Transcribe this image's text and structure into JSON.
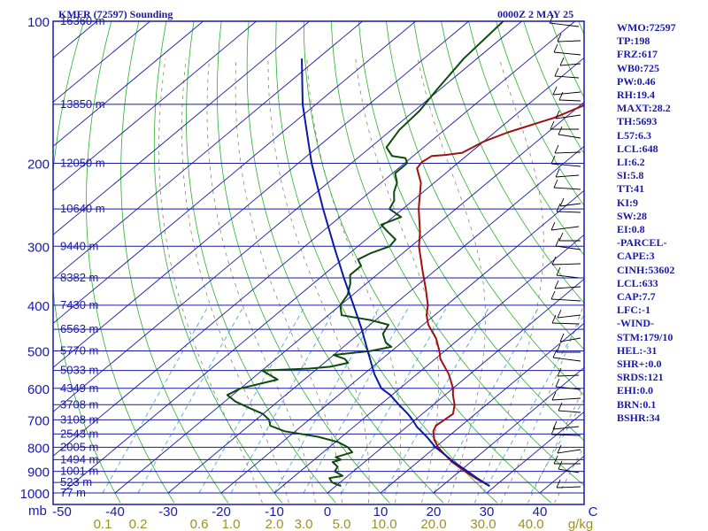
{
  "header": {
    "station": "KMFR (72597) Sounding",
    "time": "0000Z  2 MAY 25"
  },
  "stats": [
    "WMO:72597",
    "TP:198",
    "FRZ:617",
    "WB0:725",
    "PW:0.46",
    "RH:19.4",
    "MAXT:28.2",
    "TH:5693",
    "L57:6.3",
    "LCL:648",
    "LI:6.2",
    "SI:5.8",
    "TT:41",
    "KI:9",
    "SW:28",
    "EI:0.8",
    "-PARCEL-",
    "CAPE:3",
    "CINH:53602",
    "LCL:633",
    "CAP:7.7",
    "LFC:-1",
    "-WIND-",
    "STM:179/10",
    "HEL:-31",
    "SHR+:0.0",
    "SRDS:121",
    "EHI:0.0",
    "BRN:0.1",
    "BSHR:34"
  ],
  "colors": {
    "frame": "#1a1aa6",
    "dry_adiabat": "#2ab02a",
    "isotherm": "#1a1aa6",
    "mixing_ratio": "#4aa8d8",
    "moist_adiabat": "#8a8470",
    "temperature": "#a01010",
    "dewpoint": "#0f4a0f",
    "parcel": "#0b1aa6",
    "wind": "#000000",
    "mix_label": "#a09020"
  },
  "chart_data": {
    "type": "line",
    "title": "KMFR (72597) Sounding",
    "xlabel": "",
    "ylabel": "mb",
    "x_unit_label": "C",
    "mix_unit_label": "g/kg",
    "xlim": [
      -50,
      50
    ],
    "ylim": [
      1000,
      100
    ],
    "pressure_ticks": [
      100,
      200,
      300,
      400,
      500,
      600,
      700,
      800,
      900,
      1000
    ],
    "temperature_ticks": [
      {
        "v": -50,
        "t": "-50"
      },
      {
        "v": -40,
        "t": "-40"
      },
      {
        "v": -30,
        "t": "-30"
      },
      {
        "v": -20,
        "t": "-20"
      },
      {
        "v": -10,
        "t": "-10"
      },
      {
        "v": 0,
        "t": "0"
      },
      {
        "v": 10,
        "t": "10"
      },
      {
        "v": 20,
        "t": "20"
      },
      {
        "v": 30,
        "t": "30"
      },
      {
        "v": 40,
        "t": "40"
      },
      {
        "v": 50,
        "t": "C"
      }
    ],
    "mixing_ratio_labels": [
      {
        "px": 116,
        "t": "0.1"
      },
      {
        "px": 156,
        "t": "0.2"
      },
      {
        "px": 225,
        "t": "0.6"
      },
      {
        "px": 261,
        "t": "1.0"
      },
      {
        "px": 310,
        "t": "2.0"
      },
      {
        "px": 343,
        "t": "3.0"
      },
      {
        "px": 386,
        "t": "5.0"
      },
      {
        "px": 434,
        "t": "10.0"
      },
      {
        "px": 490,
        "t": "20.0"
      },
      {
        "px": 546,
        "t": "30.0"
      },
      {
        "px": 600,
        "t": "40.0"
      },
      {
        "px": 656,
        "t": "g/kg"
      }
    ],
    "height_labels": [
      {
        "p": 100,
        "t": "16360 m"
      },
      {
        "p": 150,
        "t": "13850 m"
      },
      {
        "p": 200,
        "t": "12050 m"
      },
      {
        "p": 250,
        "t": "10640 m"
      },
      {
        "p": 300,
        "t": "9440 m"
      },
      {
        "p": 350,
        "t": "8382 m"
      },
      {
        "p": 400,
        "t": "7430 m"
      },
      {
        "p": 450,
        "t": "6563 m"
      },
      {
        "p": 500,
        "t": "5770 m"
      },
      {
        "p": 550,
        "t": "5033 m"
      },
      {
        "p": 600,
        "t": "4349 m"
      },
      {
        "p": 650,
        "t": "3708 m"
      },
      {
        "p": 700,
        "t": "3108 m"
      },
      {
        "p": 750,
        "t": "2543 m"
      },
      {
        "p": 800,
        "t": "2005 m"
      },
      {
        "p": 850,
        "t": "1494 m"
      },
      {
        "p": 900,
        "t": "1001 m"
      },
      {
        "p": 950,
        "t": "523 m"
      },
      {
        "p": 1000,
        "t": "77 m"
      }
    ],
    "series": [
      {
        "key": "temperature",
        "values": [
          [
            967,
            29.0
          ],
          [
            960,
            28.2
          ],
          [
            930,
            24.5
          ],
          [
            900,
            21.0
          ],
          [
            860,
            16.5
          ],
          [
            820,
            12.5
          ],
          [
            800,
            10.5
          ],
          [
            770,
            8.0
          ],
          [
            740,
            6.0
          ],
          [
            720,
            5.2
          ],
          [
            700,
            5.5
          ],
          [
            680,
            5.8
          ],
          [
            650,
            4.0
          ],
          [
            620,
            1.5
          ],
          [
            600,
            0.0
          ],
          [
            560,
            -4.0
          ],
          [
            520,
            -9.0
          ],
          [
            500,
            -11.0
          ],
          [
            470,
            -14.5
          ],
          [
            440,
            -19.0
          ],
          [
            420,
            -21.5
          ],
          [
            400,
            -23.5
          ],
          [
            370,
            -27.5
          ],
          [
            340,
            -32.0
          ],
          [
            300,
            -38.5
          ],
          [
            280,
            -41.5
          ],
          [
            250,
            -47.0
          ],
          [
            220,
            -52.5
          ],
          [
            205,
            -56.5
          ],
          [
            199,
            -57.0
          ],
          [
            193,
            -56.5
          ],
          [
            192,
            -54.0
          ],
          [
            190,
            -51.5
          ],
          [
            180,
            -50.0
          ],
          [
            172,
            -47.5
          ],
          [
            160,
            -42.0
          ],
          [
            145,
            -37.5
          ],
          [
            130,
            -31.0
          ],
          [
            115,
            -23.5
          ],
          [
            100,
            -16.5
          ]
        ]
      },
      {
        "key": "dewpoint",
        "values": [
          [
            967,
            1.0
          ],
          [
            950,
            -1.5
          ],
          [
            930,
            -3.0
          ],
          [
            920,
            -1.0
          ],
          [
            900,
            -3.5
          ],
          [
            880,
            -4.0
          ],
          [
            860,
            -6.0
          ],
          [
            850,
            -5.0
          ],
          [
            840,
            -6.5
          ],
          [
            820,
            -4.5
          ],
          [
            800,
            -6.5
          ],
          [
            780,
            -9.5
          ],
          [
            760,
            -14.5
          ],
          [
            740,
            -22.0
          ],
          [
            720,
            -26.0
          ],
          [
            700,
            -27.5
          ],
          [
            680,
            -30.0
          ],
          [
            660,
            -34.0
          ],
          [
            640,
            -38.0
          ],
          [
            620,
            -41.0
          ],
          [
            600,
            -40.0
          ],
          [
            590,
            -38.0
          ],
          [
            575,
            -35.0
          ],
          [
            560,
            -38.0
          ],
          [
            550,
            -40.0
          ],
          [
            545,
            -31.5
          ],
          [
            540,
            -28.0
          ],
          [
            530,
            -25.5
          ],
          [
            520,
            -27.0
          ],
          [
            510,
            -30.0
          ],
          [
            500,
            -24.0
          ],
          [
            490,
            -21.0
          ],
          [
            480,
            -23.0
          ],
          [
            460,
            -25.5
          ],
          [
            440,
            -26.5
          ],
          [
            430,
            -31.0
          ],
          [
            420,
            -37.5
          ],
          [
            400,
            -40.0
          ],
          [
            380,
            -41.0
          ],
          [
            360,
            -43.0
          ],
          [
            345,
            -45.0
          ],
          [
            330,
            -45.0
          ],
          [
            320,
            -47.0
          ],
          [
            310,
            -46.0
          ],
          [
            300,
            -44.0
          ],
          [
            290,
            -44.5
          ],
          [
            280,
            -47.5
          ],
          [
            270,
            -50.5
          ],
          [
            260,
            -48.5
          ],
          [
            250,
            -52.5
          ],
          [
            240,
            -53.5
          ],
          [
            230,
            -55.5
          ],
          [
            220,
            -57.0
          ],
          [
            210,
            -59.5
          ],
          [
            200,
            -59.5
          ],
          [
            195,
            -61.0
          ],
          [
            193,
            -64.0
          ],
          [
            185,
            -67.0
          ],
          [
            170,
            -68.5
          ],
          [
            155,
            -69.0
          ],
          [
            140,
            -70.5
          ],
          [
            120,
            -72.5
          ],
          [
            100,
            -73.5
          ]
        ]
      },
      {
        "key": "parcel",
        "values": [
          [
            967,
            29.0
          ],
          [
            930,
            24.8
          ],
          [
            900,
            21.5
          ],
          [
            860,
            16.8
          ],
          [
            830,
            13.5
          ],
          [
            800,
            10.0
          ],
          [
            760,
            6.0
          ],
          [
            725,
            2.0
          ],
          [
            700,
            -0.5
          ],
          [
            680,
            -2.7
          ],
          [
            650,
            -6.5
          ],
          [
            620,
            -10.3
          ],
          [
            600,
            -13.5
          ],
          [
            560,
            -18.0
          ],
          [
            500,
            -24.5
          ],
          [
            450,
            -30.5
          ],
          [
            400,
            -37.5
          ],
          [
            350,
            -45.5
          ],
          [
            300,
            -54.5
          ],
          [
            250,
            -65.0
          ],
          [
            200,
            -77.5
          ],
          [
            150,
            -92.5
          ],
          [
            120,
            -103.0
          ]
        ]
      }
    ]
  }
}
